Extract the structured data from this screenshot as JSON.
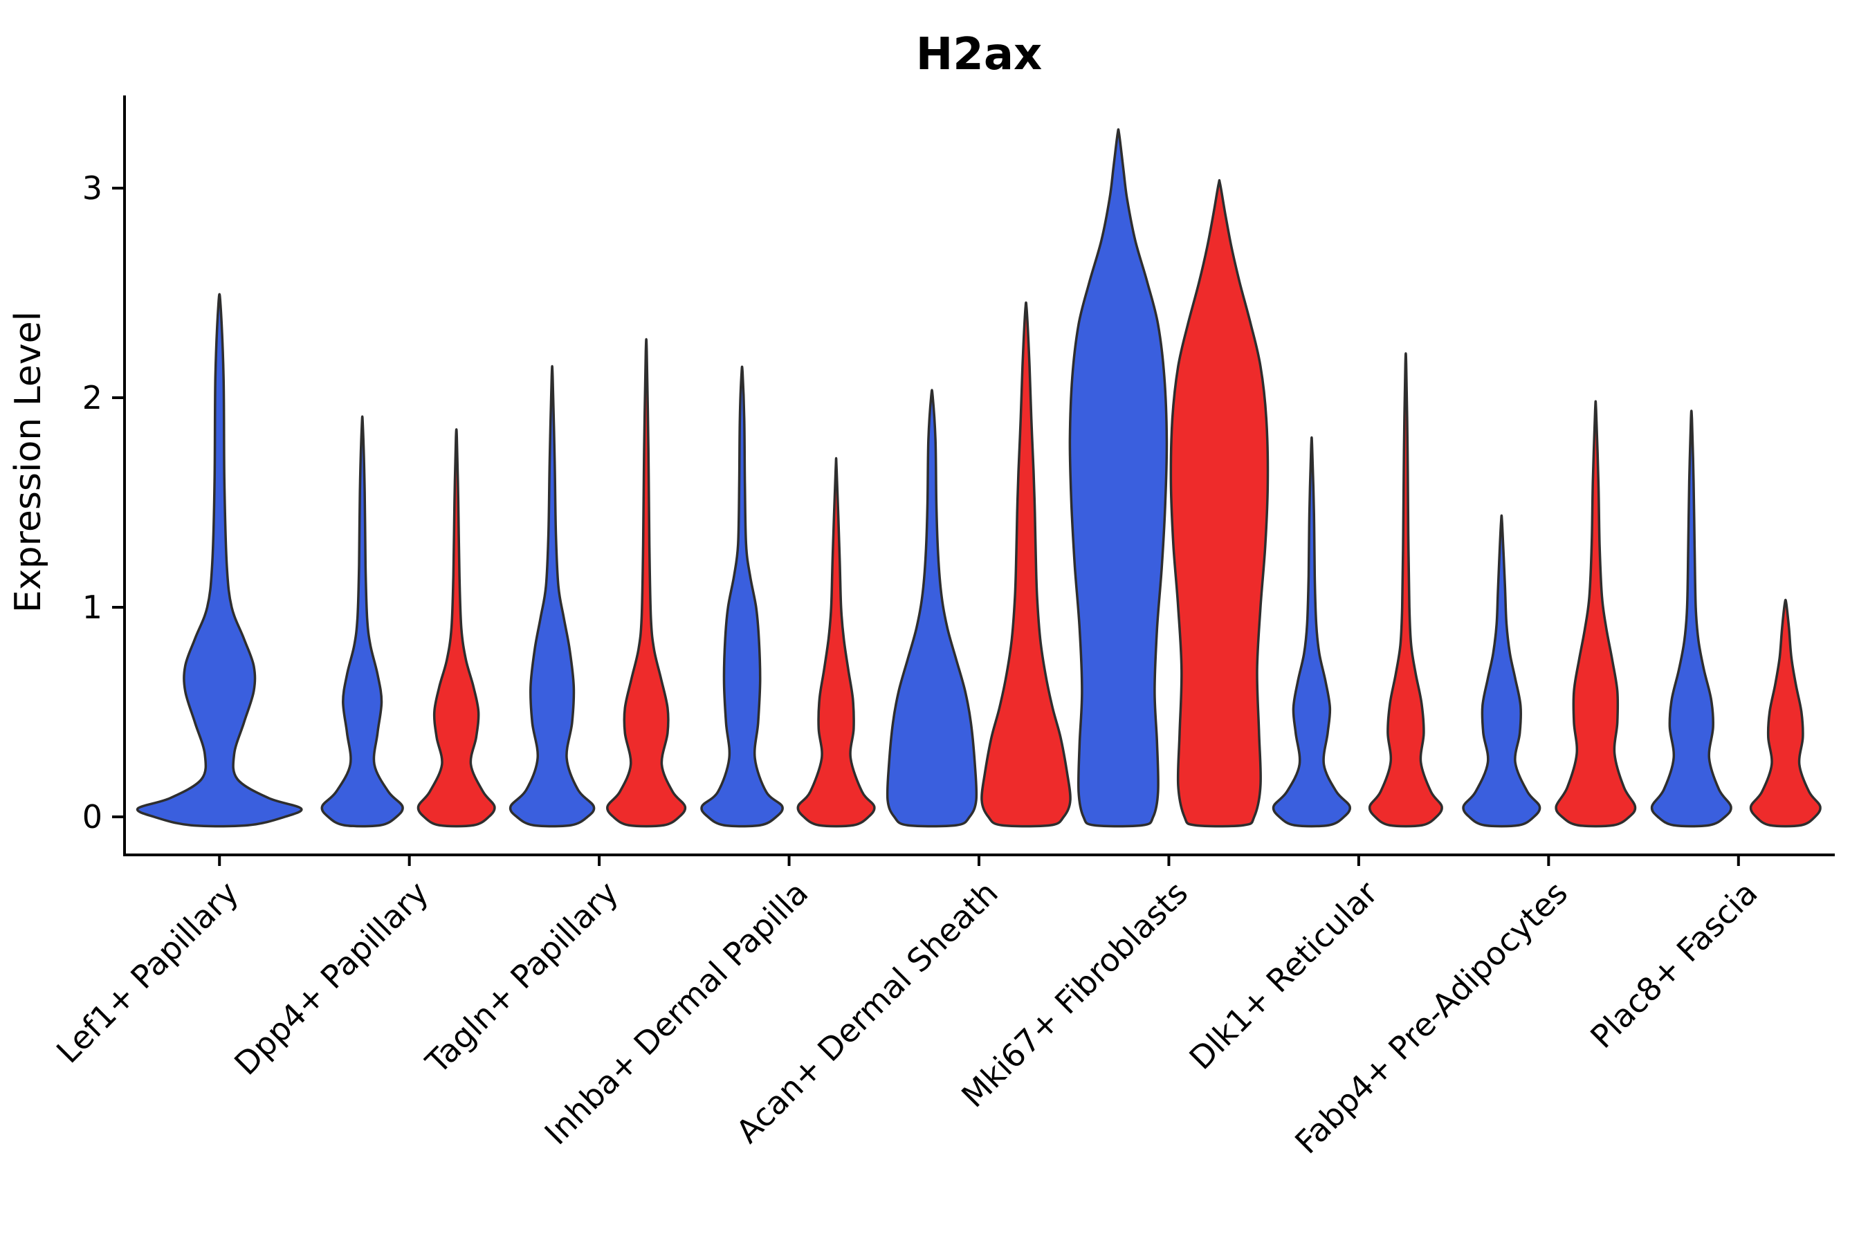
{
  "title": "H2ax",
  "colors": {
    "background": "#FFFFFF",
    "axis": "#000000",
    "violin_stroke": "#2E2E2E",
    "group1_blue": "#3A5FDE",
    "group2_red": "#EE2B2B"
  },
  "chart_data": {
    "type": "violin",
    "title": "H2ax",
    "xlabel": "",
    "ylabel": "Expression Level",
    "ylim": [
      -0.12,
      3.45
    ],
    "yticks": [
      0,
      1,
      2,
      3
    ],
    "grid": false,
    "legend": "none",
    "x_label_rotation_deg": 45,
    "categories": [
      "Lef1+ Papillary",
      "Dpp4+ Papillary",
      "Tagln+ Papillary",
      "Inhba+ Dermal Papilla",
      "Acan+ Dermal Sheath",
      "Mki67+ Fibroblasts",
      "Dlk1+ Reticular",
      "Fabp4+ Pre-Adipocytes",
      "Plac8+ Fascia"
    ],
    "series": [
      {
        "name": "group1",
        "color": "#3A5FDE"
      },
      {
        "name": "group2",
        "color": "#EE2B2B"
      }
    ],
    "violins": [
      {
        "category_index": 0,
        "series_index": 0,
        "offset": 0,
        "halfwidth": 118,
        "max": 2.45,
        "profile": [
          [
            -0.04,
            0.35
          ],
          [
            0.0,
            0.8
          ],
          [
            0.04,
            1.0
          ],
          [
            0.09,
            0.6
          ],
          [
            0.18,
            0.22
          ],
          [
            0.3,
            0.18
          ],
          [
            0.45,
            0.3
          ],
          [
            0.6,
            0.42
          ],
          [
            0.72,
            0.42
          ],
          [
            0.85,
            0.3
          ],
          [
            1.0,
            0.15
          ],
          [
            1.2,
            0.09
          ],
          [
            1.6,
            0.06
          ],
          [
            2.1,
            0.05
          ],
          [
            2.45,
            0.012
          ]
        ]
      },
      {
        "category_index": 1,
        "series_index": 0,
        "offset": -68,
        "halfwidth": 58,
        "max": 1.87,
        "profile": [
          [
            -0.04,
            0.45
          ],
          [
            0.0,
            0.85
          ],
          [
            0.05,
            1.0
          ],
          [
            0.12,
            0.65
          ],
          [
            0.25,
            0.3
          ],
          [
            0.4,
            0.38
          ],
          [
            0.55,
            0.48
          ],
          [
            0.68,
            0.38
          ],
          [
            0.82,
            0.2
          ],
          [
            0.95,
            0.12
          ],
          [
            1.2,
            0.08
          ],
          [
            1.55,
            0.06
          ],
          [
            1.87,
            0.012
          ]
        ]
      },
      {
        "category_index": 1,
        "series_index": 1,
        "offset": 68,
        "halfwidth": 55,
        "max": 1.81,
        "profile": [
          [
            -0.04,
            0.45
          ],
          [
            0.0,
            0.85
          ],
          [
            0.05,
            1.0
          ],
          [
            0.12,
            0.7
          ],
          [
            0.25,
            0.38
          ],
          [
            0.38,
            0.52
          ],
          [
            0.5,
            0.58
          ],
          [
            0.62,
            0.45
          ],
          [
            0.75,
            0.25
          ],
          [
            0.9,
            0.13
          ],
          [
            1.15,
            0.08
          ],
          [
            1.5,
            0.05
          ],
          [
            1.81,
            0.012
          ]
        ]
      },
      {
        "category_index": 2,
        "series_index": 0,
        "offset": -68,
        "halfwidth": 60,
        "max": 2.1,
        "profile": [
          [
            -0.04,
            0.45
          ],
          [
            0.0,
            0.85
          ],
          [
            0.05,
            1.0
          ],
          [
            0.13,
            0.62
          ],
          [
            0.28,
            0.35
          ],
          [
            0.45,
            0.48
          ],
          [
            0.62,
            0.52
          ],
          [
            0.8,
            0.42
          ],
          [
            0.95,
            0.28
          ],
          [
            1.1,
            0.15
          ],
          [
            1.35,
            0.09
          ],
          [
            1.7,
            0.06
          ],
          [
            2.1,
            0.012
          ]
        ]
      },
      {
        "category_index": 2,
        "series_index": 1,
        "offset": 68,
        "halfwidth": 56,
        "max": 2.22,
        "profile": [
          [
            -0.04,
            0.45
          ],
          [
            0.0,
            0.85
          ],
          [
            0.05,
            1.0
          ],
          [
            0.12,
            0.68
          ],
          [
            0.25,
            0.4
          ],
          [
            0.4,
            0.55
          ],
          [
            0.52,
            0.55
          ],
          [
            0.66,
            0.38
          ],
          [
            0.8,
            0.2
          ],
          [
            0.95,
            0.12
          ],
          [
            1.3,
            0.08
          ],
          [
            1.75,
            0.055
          ],
          [
            2.22,
            0.012
          ]
        ]
      },
      {
        "category_index": 3,
        "series_index": 0,
        "offset": -68,
        "halfwidth": 58,
        "max": 2.12,
        "profile": [
          [
            -0.04,
            0.45
          ],
          [
            0.0,
            0.85
          ],
          [
            0.05,
            1.0
          ],
          [
            0.12,
            0.6
          ],
          [
            0.28,
            0.32
          ],
          [
            0.45,
            0.4
          ],
          [
            0.65,
            0.45
          ],
          [
            0.85,
            0.42
          ],
          [
            1.0,
            0.35
          ],
          [
            1.15,
            0.2
          ],
          [
            1.3,
            0.1
          ],
          [
            1.6,
            0.07
          ],
          [
            1.9,
            0.055
          ],
          [
            2.12,
            0.012
          ]
        ]
      },
      {
        "category_index": 3,
        "series_index": 1,
        "offset": 68,
        "halfwidth": 55,
        "max": 1.66,
        "profile": [
          [
            -0.04,
            0.45
          ],
          [
            0.0,
            0.85
          ],
          [
            0.05,
            1.0
          ],
          [
            0.12,
            0.68
          ],
          [
            0.28,
            0.38
          ],
          [
            0.42,
            0.46
          ],
          [
            0.56,
            0.44
          ],
          [
            0.7,
            0.32
          ],
          [
            0.85,
            0.2
          ],
          [
            1.0,
            0.13
          ],
          [
            1.25,
            0.09
          ],
          [
            1.66,
            0.012
          ]
        ]
      },
      {
        "category_index": 4,
        "series_index": 0,
        "offset": -68,
        "halfwidth": 64,
        "max": 2.01,
        "profile": [
          [
            -0.04,
            0.55
          ],
          [
            0.0,
            0.85
          ],
          [
            0.08,
            1.0
          ],
          [
            0.25,
            0.97
          ],
          [
            0.45,
            0.88
          ],
          [
            0.6,
            0.75
          ],
          [
            0.75,
            0.55
          ],
          [
            0.9,
            0.35
          ],
          [
            1.05,
            0.22
          ],
          [
            1.25,
            0.14
          ],
          [
            1.5,
            0.1
          ],
          [
            1.8,
            0.08
          ],
          [
            2.01,
            0.015
          ]
        ]
      },
      {
        "category_index": 4,
        "series_index": 1,
        "offset": 68,
        "halfwidth": 64,
        "max": 2.42,
        "profile": [
          [
            -0.04,
            0.55
          ],
          [
            0.0,
            0.85
          ],
          [
            0.08,
            1.0
          ],
          [
            0.22,
            0.92
          ],
          [
            0.38,
            0.78
          ],
          [
            0.52,
            0.6
          ],
          [
            0.68,
            0.44
          ],
          [
            0.85,
            0.32
          ],
          [
            1.05,
            0.25
          ],
          [
            1.25,
            0.22
          ],
          [
            1.45,
            0.2
          ],
          [
            1.65,
            0.17
          ],
          [
            1.9,
            0.12
          ],
          [
            2.15,
            0.08
          ],
          [
            2.42,
            0.015
          ]
        ]
      },
      {
        "category_index": 5,
        "series_index": 0,
        "offset": -73,
        "halfwidth": 70,
        "max": 3.26,
        "profile": [
          [
            -0.04,
            0.5
          ],
          [
            0.0,
            0.72
          ],
          [
            0.12,
            0.82
          ],
          [
            0.35,
            0.8
          ],
          [
            0.6,
            0.75
          ],
          [
            0.9,
            0.8
          ],
          [
            1.2,
            0.9
          ],
          [
            1.5,
            0.97
          ],
          [
            1.8,
            1.0
          ],
          [
            2.1,
            0.95
          ],
          [
            2.35,
            0.82
          ],
          [
            2.55,
            0.6
          ],
          [
            2.75,
            0.35
          ],
          [
            2.95,
            0.18
          ],
          [
            3.1,
            0.1
          ],
          [
            3.26,
            0.015
          ]
        ]
      },
      {
        "category_index": 5,
        "series_index": 1,
        "offset": 73,
        "halfwidth": 70,
        "max": 3.02,
        "profile": [
          [
            -0.04,
            0.5
          ],
          [
            0.0,
            0.72
          ],
          [
            0.15,
            0.85
          ],
          [
            0.4,
            0.82
          ],
          [
            0.7,
            0.78
          ],
          [
            1.0,
            0.85
          ],
          [
            1.3,
            0.95
          ],
          [
            1.6,
            1.0
          ],
          [
            1.9,
            0.97
          ],
          [
            2.15,
            0.85
          ],
          [
            2.35,
            0.65
          ],
          [
            2.55,
            0.42
          ],
          [
            2.72,
            0.25
          ],
          [
            2.88,
            0.12
          ],
          [
            3.02,
            0.015
          ]
        ]
      },
      {
        "category_index": 6,
        "series_index": 0,
        "offset": -68,
        "halfwidth": 55,
        "max": 1.77,
        "profile": [
          [
            -0.04,
            0.45
          ],
          [
            0.0,
            0.85
          ],
          [
            0.05,
            1.0
          ],
          [
            0.12,
            0.65
          ],
          [
            0.25,
            0.32
          ],
          [
            0.4,
            0.42
          ],
          [
            0.52,
            0.48
          ],
          [
            0.65,
            0.36
          ],
          [
            0.78,
            0.2
          ],
          [
            0.92,
            0.12
          ],
          [
            1.15,
            0.08
          ],
          [
            1.45,
            0.06
          ],
          [
            1.77,
            0.012
          ]
        ]
      },
      {
        "category_index": 6,
        "series_index": 1,
        "offset": 68,
        "halfwidth": 52,
        "max": 2.16,
        "profile": [
          [
            -0.04,
            0.45
          ],
          [
            0.0,
            0.85
          ],
          [
            0.05,
            1.0
          ],
          [
            0.12,
            0.7
          ],
          [
            0.26,
            0.42
          ],
          [
            0.4,
            0.5
          ],
          [
            0.54,
            0.44
          ],
          [
            0.68,
            0.28
          ],
          [
            0.82,
            0.15
          ],
          [
            1.0,
            0.1
          ],
          [
            1.35,
            0.07
          ],
          [
            1.75,
            0.05
          ],
          [
            2.16,
            0.012
          ]
        ]
      },
      {
        "category_index": 7,
        "series_index": 0,
        "offset": -68,
        "halfwidth": 55,
        "max": 1.4,
        "profile": [
          [
            -0.04,
            0.45
          ],
          [
            0.0,
            0.85
          ],
          [
            0.05,
            1.0
          ],
          [
            0.12,
            0.68
          ],
          [
            0.26,
            0.36
          ],
          [
            0.4,
            0.48
          ],
          [
            0.53,
            0.5
          ],
          [
            0.66,
            0.36
          ],
          [
            0.78,
            0.22
          ],
          [
            0.92,
            0.13
          ],
          [
            1.1,
            0.09
          ],
          [
            1.4,
            0.015
          ]
        ]
      },
      {
        "category_index": 7,
        "series_index": 1,
        "offset": 68,
        "halfwidth": 57,
        "max": 1.94,
        "profile": [
          [
            -0.04,
            0.45
          ],
          [
            0.0,
            0.85
          ],
          [
            0.05,
            1.0
          ],
          [
            0.14,
            0.72
          ],
          [
            0.3,
            0.48
          ],
          [
            0.45,
            0.55
          ],
          [
            0.6,
            0.55
          ],
          [
            0.75,
            0.42
          ],
          [
            0.9,
            0.27
          ],
          [
            1.05,
            0.16
          ],
          [
            1.3,
            0.1
          ],
          [
            1.6,
            0.07
          ],
          [
            1.94,
            0.012
          ]
        ]
      },
      {
        "category_index": 8,
        "series_index": 0,
        "offset": -68,
        "halfwidth": 57,
        "max": 1.9,
        "profile": [
          [
            -0.04,
            0.45
          ],
          [
            0.0,
            0.85
          ],
          [
            0.05,
            1.0
          ],
          [
            0.13,
            0.7
          ],
          [
            0.28,
            0.45
          ],
          [
            0.43,
            0.55
          ],
          [
            0.56,
            0.5
          ],
          [
            0.7,
            0.32
          ],
          [
            0.84,
            0.18
          ],
          [
            1.0,
            0.11
          ],
          [
            1.3,
            0.08
          ],
          [
            1.6,
            0.055
          ],
          [
            1.9,
            0.012
          ]
        ]
      },
      {
        "category_index": 8,
        "series_index": 1,
        "offset": 68,
        "halfwidth": 50,
        "max": 1.02,
        "profile": [
          [
            -0.04,
            0.45
          ],
          [
            0.0,
            0.85
          ],
          [
            0.05,
            1.0
          ],
          [
            0.12,
            0.68
          ],
          [
            0.25,
            0.4
          ],
          [
            0.38,
            0.5
          ],
          [
            0.5,
            0.46
          ],
          [
            0.63,
            0.3
          ],
          [
            0.76,
            0.17
          ],
          [
            0.9,
            0.1
          ],
          [
            1.02,
            0.02
          ]
        ]
      }
    ]
  }
}
